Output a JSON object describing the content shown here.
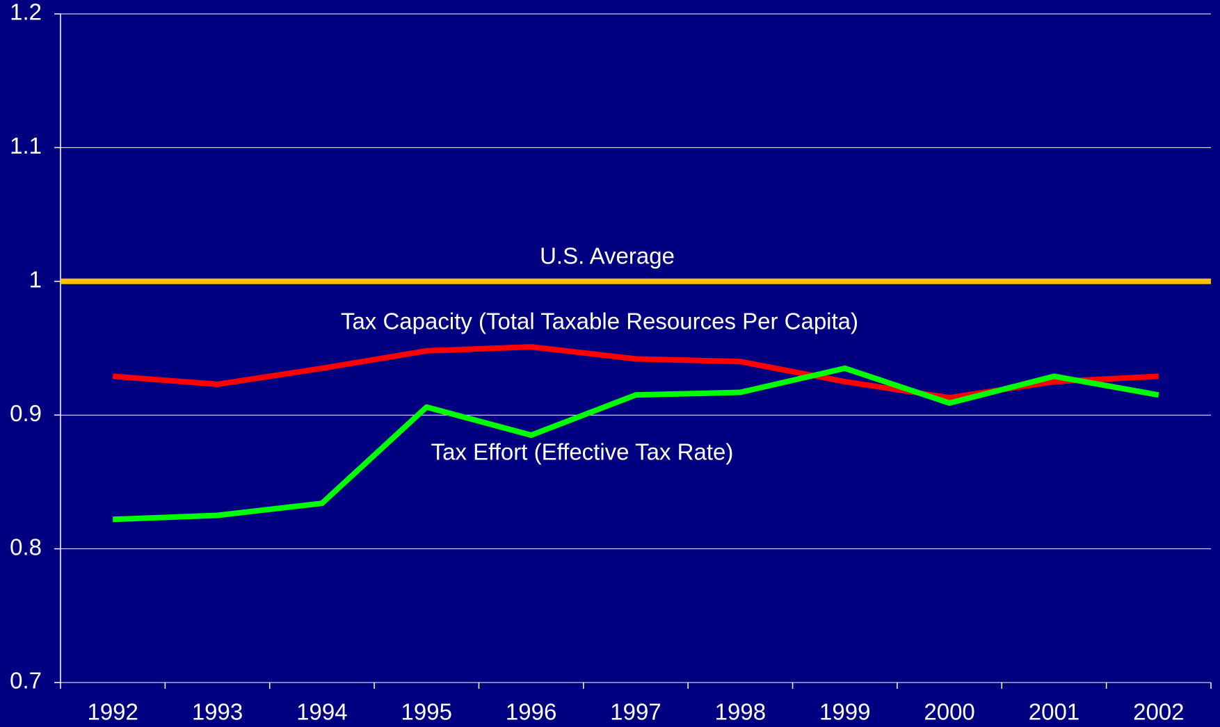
{
  "chart_data": {
    "type": "line",
    "categories": [
      "1992",
      "1993",
      "1994",
      "1995",
      "1996",
      "1997",
      "1998",
      "1999",
      "2000",
      "2001",
      "2002"
    ],
    "series": [
      {
        "name": "Tax Capacity (Total Taxable Resources Per Capita)",
        "color": "#ff0000",
        "values": [
          0.929,
          0.923,
          0.935,
          0.948,
          0.951,
          0.942,
          0.94,
          0.925,
          0.913,
          0.925,
          0.929
        ]
      },
      {
        "name": "Tax Effort (Effective Tax Rate)",
        "color": "#00ff00",
        "values": [
          0.822,
          0.825,
          0.834,
          0.906,
          0.885,
          0.915,
          0.917,
          0.935,
          0.909,
          0.929,
          0.915
        ]
      }
    ],
    "reference_line": {
      "label": "U.S. Average",
      "value": 1,
      "color": "#ffc000"
    },
    "ylim": [
      0.7,
      1.2
    ],
    "yticks": [
      0.7,
      0.8,
      0.9,
      1,
      1.1,
      1.2
    ],
    "grid": true
  }
}
